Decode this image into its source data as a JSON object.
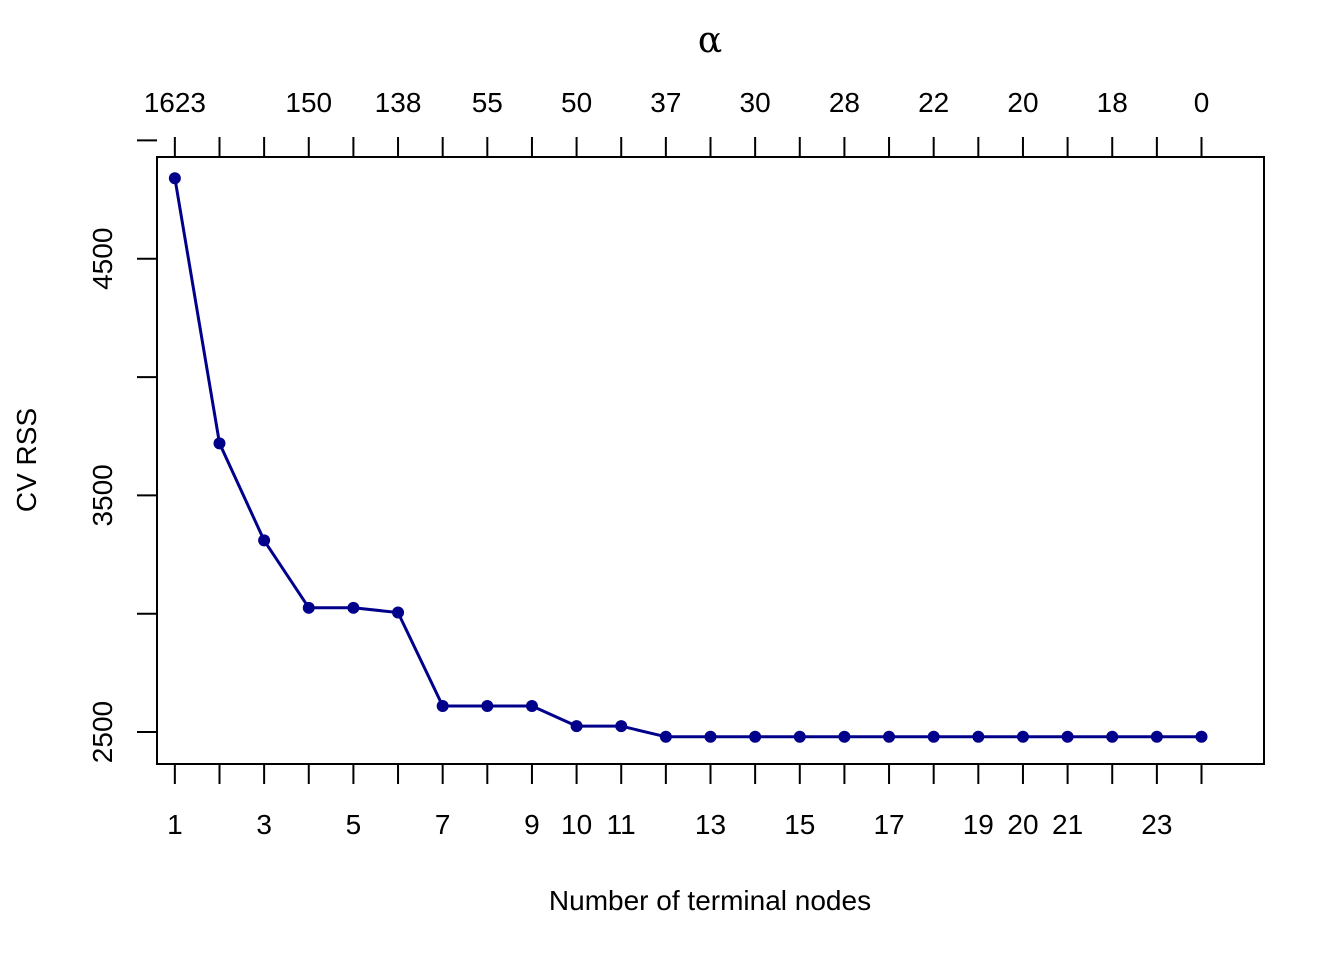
{
  "chart_data": {
    "type": "line",
    "xlabel": "Number of terminal nodes",
    "ylabel": "CV RSS",
    "top_axis_title": "α",
    "x": [
      1,
      2,
      3,
      4,
      5,
      6,
      7,
      8,
      9,
      10,
      11,
      12,
      13,
      14,
      15,
      16,
      17,
      18,
      19,
      20,
      21,
      22,
      23,
      24
    ],
    "y": [
      4840,
      3720,
      3310,
      3025,
      3025,
      3005,
      2610,
      2610,
      2610,
      2525,
      2525,
      2480,
      2480,
      2480,
      2480,
      2480,
      2480,
      2480,
      2480,
      2480,
      2480,
      2480,
      2480,
      2480
    ],
    "xlim": [
      0.6,
      25.4
    ],
    "ylim": [
      2365,
      4930
    ],
    "y_ticks": [
      2500,
      3000,
      3500,
      4000,
      4500,
      5000
    ],
    "y_tick_labels": [
      "2500",
      "",
      "3500",
      "",
      "4500",
      ""
    ],
    "x_tick_labels": [
      "1",
      "",
      "3",
      "",
      "5",
      "",
      "7",
      "",
      "9",
      "10",
      "11",
      "",
      "13",
      "",
      "15",
      "",
      "17",
      "",
      "19",
      "20",
      "21",
      "",
      "23",
      ""
    ],
    "top_tick_labels": [
      "1623",
      "",
      "",
      "150",
      "",
      "138",
      "",
      "55",
      "",
      "50",
      "",
      "37",
      "",
      "30",
      "",
      "28",
      "",
      "22",
      "",
      "20",
      "",
      "18",
      "",
      "0"
    ],
    "line_color": "#00008B",
    "point_color": "#00008B",
    "grid": false
  }
}
